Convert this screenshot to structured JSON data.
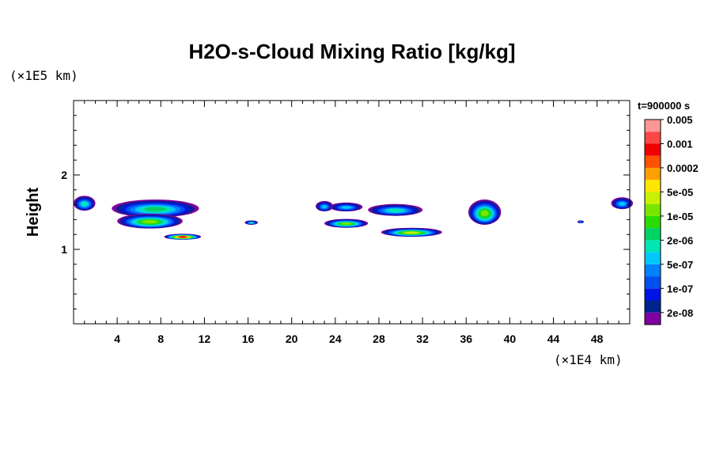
{
  "chart_data": {
    "type": "heatmap",
    "title": "H2O-s-Cloud Mixing Ratio [kg/kg]",
    "ylabel": "Height",
    "xlabel": "",
    "x_unit": "(×1E4 km)",
    "y_unit": "(×1E5 km)",
    "time_label": "t=900000 s",
    "xlim": [
      0,
      51
    ],
    "ylim": [
      0,
      3.0
    ],
    "x_ticks": [
      4,
      8,
      12,
      16,
      20,
      24,
      28,
      32,
      36,
      40,
      44,
      48
    ],
    "y_ticks": [
      1,
      2
    ],
    "legend": {
      "placement": "right",
      "colors": [
        "#7f00a0",
        "#00238c",
        "#0014e6",
        "#0050f0",
        "#0082ff",
        "#00c8ff",
        "#00e6b4",
        "#00d264",
        "#28dc00",
        "#78e600",
        "#c8f000",
        "#ffe600",
        "#ffa000",
        "#ff5000",
        "#f00000",
        "#ff4646",
        "#ff9696"
      ],
      "labels": [
        "2e-08",
        "1e-07",
        "5e-07",
        "2e-06",
        "1e-05",
        "5e-05",
        "0.0002",
        "0.001",
        "0.005"
      ]
    },
    "cloud_regions": [
      {
        "x_center": 1.0,
        "y_center": 1.62,
        "x_halfwidth": 1.0,
        "y_halfwidth": 0.1,
        "peak_level": 6
      },
      {
        "x_center": 7.5,
        "y_center": 1.55,
        "x_halfwidth": 4.0,
        "y_halfwidth": 0.12,
        "peak_level": 7
      },
      {
        "x_center": 7.0,
        "y_center": 1.38,
        "x_halfwidth": 3.0,
        "y_halfwidth": 0.1,
        "peak_level": 9
      },
      {
        "x_center": 10.0,
        "y_center": 1.17,
        "x_halfwidth": 1.7,
        "y_halfwidth": 0.04,
        "peak_level": 14
      },
      {
        "x_center": 16.3,
        "y_center": 1.36,
        "x_halfwidth": 0.6,
        "y_halfwidth": 0.03,
        "peak_level": 6
      },
      {
        "x_center": 23.0,
        "y_center": 1.58,
        "x_halfwidth": 0.8,
        "y_halfwidth": 0.07,
        "peak_level": 5
      },
      {
        "x_center": 25.0,
        "y_center": 1.57,
        "x_halfwidth": 1.5,
        "y_halfwidth": 0.06,
        "peak_level": 5
      },
      {
        "x_center": 25.0,
        "y_center": 1.35,
        "x_halfwidth": 2.0,
        "y_halfwidth": 0.06,
        "peak_level": 9
      },
      {
        "x_center": 29.5,
        "y_center": 1.53,
        "x_halfwidth": 2.5,
        "y_halfwidth": 0.08,
        "peak_level": 6
      },
      {
        "x_center": 31.0,
        "y_center": 1.23,
        "x_halfwidth": 2.8,
        "y_halfwidth": 0.06,
        "peak_level": 10
      },
      {
        "x_center": 37.7,
        "y_center": 1.5,
        "x_halfwidth": 1.5,
        "y_halfwidth": 0.17,
        "peak_level": 9
      },
      {
        "x_center": 46.5,
        "y_center": 1.37,
        "x_halfwidth": 0.3,
        "y_halfwidth": 0.02,
        "peak_level": 4
      },
      {
        "x_center": 50.3,
        "y_center": 1.62,
        "x_halfwidth": 1.0,
        "y_halfwidth": 0.08,
        "peak_level": 5
      }
    ]
  }
}
